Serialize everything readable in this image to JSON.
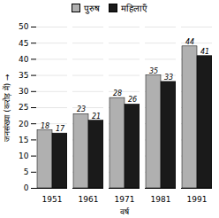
{
  "chart_data": {
    "type": "bar",
    "categories": [
      "1951",
      "1961",
      "1971",
      "1981",
      "1991"
    ],
    "series": [
      {
        "name": "पुरुष",
        "color": "#b0b0b0",
        "values": [
          18,
          23,
          28,
          35,
          44
        ]
      },
      {
        "name": "महिलाएँ",
        "color": "#1a1a1a",
        "values": [
          17,
          21,
          26,
          33,
          41
        ]
      }
    ],
    "xlabel": "वर्ष",
    "ylabel": "जनसंख्या (करोड़ में)",
    "ylim": [
      0,
      50
    ],
    "yticks": [
      0,
      5,
      10,
      15,
      20,
      25,
      30,
      35,
      40,
      45,
      50
    ],
    "grid": true,
    "legend": "top",
    "data_labels": true
  }
}
